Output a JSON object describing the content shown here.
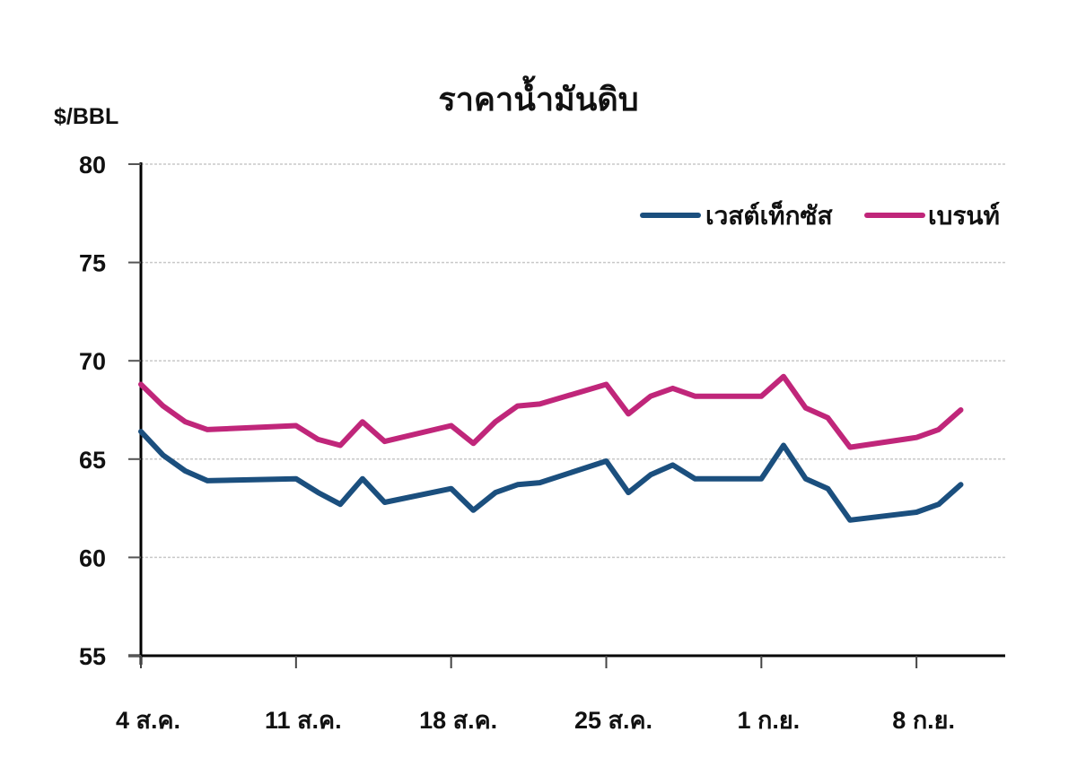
{
  "chart_data": {
    "type": "line",
    "title": "ราคาน้ำมันดิบ",
    "ylabel": "$/BBL",
    "xlabel": "",
    "ylim": [
      55,
      80
    ],
    "yticks": [
      55,
      60,
      65,
      70,
      75,
      80
    ],
    "grid": true,
    "legend_position": "top-right",
    "xtick_labels": [
      "4 ส.ค.",
      "11 ส.ค.",
      "18 ส.ค.",
      "25 ส.ค.",
      "1 ก.ย.",
      "8 ก.ย."
    ],
    "xtick_day_index": [
      0,
      7,
      14,
      21,
      28,
      35
    ],
    "x_day_index": [
      0,
      1,
      2,
      3,
      7,
      8,
      9,
      10,
      11,
      14,
      15,
      16,
      17,
      18,
      21,
      22,
      23,
      24,
      25,
      28,
      29,
      30,
      31,
      32,
      35,
      36,
      37
    ],
    "series": [
      {
        "name": "เวสต์เท็กซัส",
        "color": "#1b4f7e",
        "values": [
          66.4,
          65.2,
          64.4,
          63.9,
          64.0,
          63.3,
          62.7,
          64.0,
          62.8,
          63.5,
          62.4,
          63.3,
          63.7,
          63.8,
          64.9,
          63.3,
          64.2,
          64.7,
          64.0,
          64.0,
          65.7,
          64.0,
          63.5,
          61.9,
          62.3,
          62.7,
          63.7
        ]
      },
      {
        "name": "เบรนท์",
        "color": "#c0267a",
        "values": [
          68.8,
          67.7,
          66.9,
          66.5,
          66.7,
          66.0,
          65.7,
          66.9,
          65.9,
          66.7,
          65.8,
          66.9,
          67.7,
          67.8,
          68.8,
          67.3,
          68.2,
          68.6,
          68.2,
          68.2,
          69.2,
          67.6,
          67.1,
          65.6,
          66.1,
          66.5,
          67.5
        ]
      }
    ]
  }
}
